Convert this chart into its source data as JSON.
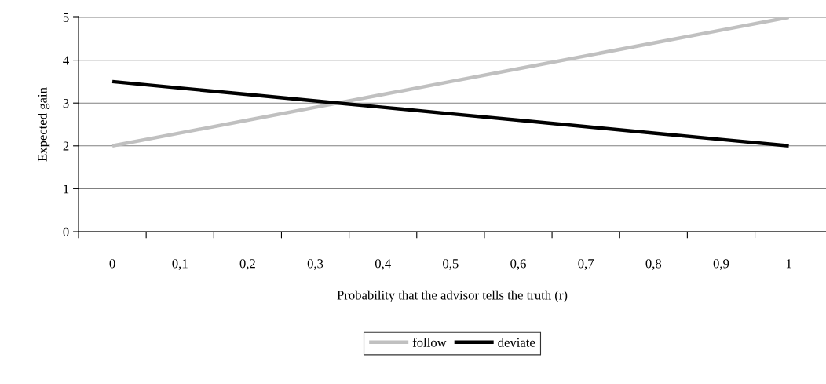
{
  "chart_data": {
    "type": "line",
    "xlabel": "Probability that the advisor tells the truth (r)",
    "ylabel": "Expected gain",
    "categories": [
      "0",
      "0,1",
      "0,2",
      "0,3",
      "0,4",
      "0,5",
      "0,6",
      "0,7",
      "0,8",
      "0,9",
      "1"
    ],
    "series": [
      {
        "name": "follow",
        "color": "#c0c0c0",
        "values": [
          2.0,
          2.3,
          2.6,
          2.9,
          3.2,
          3.5,
          3.8,
          4.1,
          4.4,
          4.7,
          5.0
        ]
      },
      {
        "name": "deviate",
        "color": "#000000",
        "values": [
          3.5,
          3.35,
          3.2,
          3.05,
          2.9,
          2.75,
          2.6,
          2.45,
          2.3,
          2.15,
          2.0
        ]
      }
    ],
    "ylim": [
      0,
      5
    ],
    "yticks": [
      0,
      1,
      2,
      3,
      4,
      5
    ],
    "grid": "y",
    "legend": "bottom",
    "marker": "none",
    "line_style": "solid"
  }
}
